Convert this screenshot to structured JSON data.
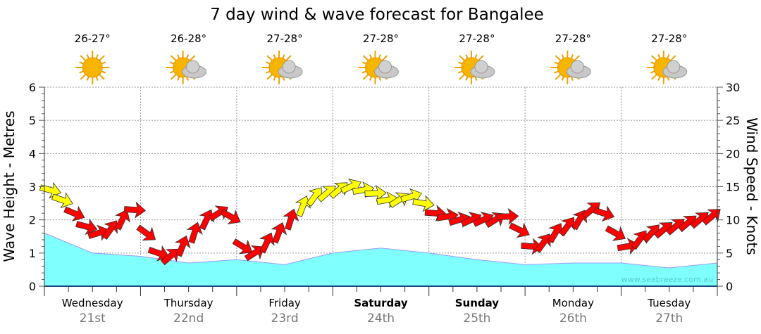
{
  "chart_data": {
    "type": "line",
    "title": "7 day wind & wave forecast for Bangalee",
    "ylabel": "Wave Height - Metres",
    "y2label": "Wind Speed - Knots",
    "ylim": [
      0,
      6
    ],
    "y2lim": [
      0,
      30
    ],
    "yticks": [
      "0",
      "1",
      "2",
      "3",
      "4",
      "5",
      "6"
    ],
    "y2ticks": [
      "0",
      "5",
      "10",
      "15",
      "20",
      "25",
      "30"
    ],
    "watermark": "www.seabreeze.com.au",
    "days": [
      {
        "name": "Wednesday",
        "date": "21st",
        "bold": false,
        "temp": "26-27°",
        "icon": "sun"
      },
      {
        "name": "Thursday",
        "date": "22nd",
        "bold": false,
        "temp": "26-28°",
        "icon": "sun-cloud"
      },
      {
        "name": "Friday",
        "date": "23rd",
        "bold": false,
        "temp": "27-28°",
        "icon": "sun-cloud"
      },
      {
        "name": "Saturday",
        "date": "24th",
        "bold": true,
        "temp": "27-28°",
        "icon": "sun-cloud"
      },
      {
        "name": "Sunday",
        "date": "25th",
        "bold": true,
        "temp": "27-28°",
        "icon": "sun-cloud"
      },
      {
        "name": "Monday",
        "date": "26th",
        "bold": false,
        "temp": "27-28°",
        "icon": "sun-cloud"
      },
      {
        "name": "Tuesday",
        "date": "27th",
        "bold": false,
        "temp": "27-28°",
        "icon": "sun-cloud"
      }
    ],
    "wave_series": {
      "name": "Wave height (m)",
      "x_days": [
        0,
        0.5,
        1,
        1.5,
        2,
        2.5,
        3,
        3.5,
        4,
        4.5,
        5,
        5.5,
        6,
        6.5,
        7
      ],
      "values": [
        1.6,
        1.0,
        0.9,
        0.7,
        0.8,
        0.65,
        1.0,
        1.15,
        1.0,
        0.8,
        0.65,
        0.7,
        0.7,
        0.55,
        0.7
      ]
    },
    "wind_series": {
      "name": "Wind speed (knots)",
      "step_hours": 3,
      "values": [
        14.5,
        13,
        11,
        9,
        8,
        8.5,
        10,
        11.5,
        8,
        5,
        4.5,
        6,
        8,
        10,
        11,
        10.5,
        6,
        5,
        6.5,
        8,
        10,
        12,
        13.5,
        14,
        14.5,
        15,
        14.5,
        14,
        13,
        13,
        13.5,
        12.5,
        11,
        10.5,
        10,
        10,
        10,
        10,
        10.5,
        8.5,
        6,
        6.5,
        8,
        9,
        10,
        11.5,
        11,
        8,
        6,
        7,
        8,
        8.5,
        9,
        9.5,
        10,
        10.5
      ],
      "strong_threshold": 12,
      "colors": {
        "strong": "#ffff00",
        "normal": "#ff0000"
      }
    },
    "colors": {
      "wave": "#80ffff",
      "axis": "#1a4a7a"
    }
  }
}
